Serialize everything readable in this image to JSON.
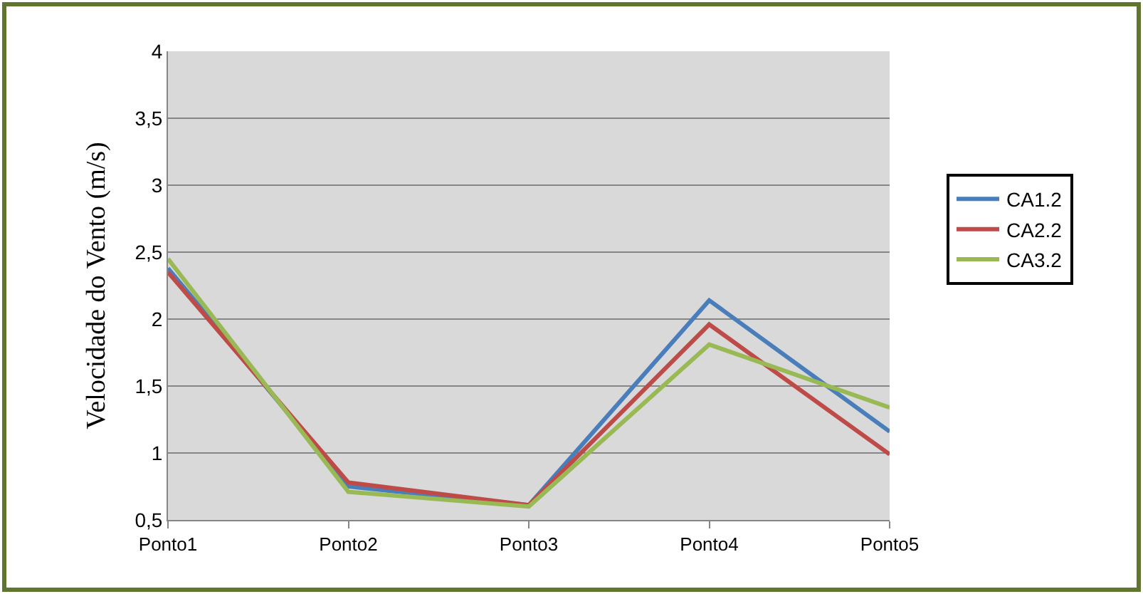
{
  "chart_data": {
    "type": "line",
    "ylabel": "Velocidade do Vento (m/s)",
    "categories": [
      "Ponto1",
      "Ponto2",
      "Ponto3",
      "Ponto4",
      "Ponto5"
    ],
    "series": [
      {
        "name": "CA1.2",
        "color": "#4a7ebb",
        "values": [
          2.38,
          0.75,
          0.61,
          2.14,
          1.16
        ]
      },
      {
        "name": "CA2.2",
        "color": "#be4b48",
        "values": [
          2.35,
          0.78,
          0.61,
          1.96,
          0.99
        ]
      },
      {
        "name": "CA3.2",
        "color": "#98b954",
        "values": [
          2.45,
          0.71,
          0.6,
          1.81,
          1.34
        ]
      }
    ],
    "ylim": [
      0.5,
      4
    ],
    "yticks": [
      {
        "value": 0.5,
        "label": "0,5"
      },
      1,
      {
        "value": 1.5,
        "label": "1,5"
      },
      2,
      {
        "value": 2.5,
        "label": "2,5"
      },
      3,
      {
        "value": 3.5,
        "label": "3,5"
      },
      4
    ],
    "grid": "y",
    "legend": "right",
    "marker": "none",
    "line_style": "solid"
  }
}
